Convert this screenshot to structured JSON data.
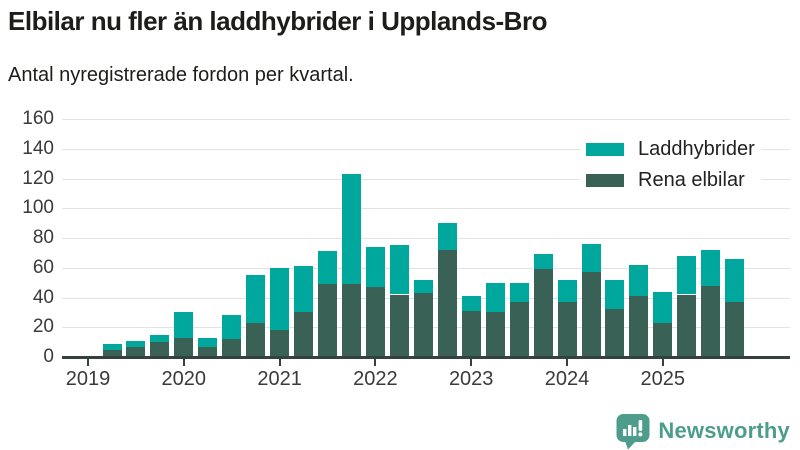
{
  "header": {
    "title": "Elbilar nu fler än laddhybrider i Upplands-Bro",
    "subtitle": "Antal nyregistrerade fordon per kvartal."
  },
  "chart_data": {
    "type": "bar",
    "stacked": true,
    "title": "Elbilar nu fler än laddhybrider i Upplands-Bro",
    "subtitle": "Antal nyregistrerade fordon per kvartal.",
    "unit": "fordon",
    "x_tick_labels": [
      "2019",
      "2020",
      "2021",
      "2022",
      "2023",
      "2024",
      "2025"
    ],
    "quarters": [
      "2019 Q1",
      "2019 Q2",
      "2019 Q3",
      "2019 Q4",
      "2020 Q1",
      "2020 Q2",
      "2020 Q3",
      "2020 Q4",
      "2021 Q1",
      "2021 Q2",
      "2021 Q3",
      "2021 Q4",
      "2022 Q1",
      "2022 Q2",
      "2022 Q3",
      "2022 Q4",
      "2023 Q1",
      "2023 Q2",
      "2023 Q3",
      "2023 Q4",
      "2024 Q1",
      "2024 Q2",
      "2024 Q3",
      "2024 Q4",
      "2025 Q1",
      "2025 Q2",
      "2025 Q3",
      "2025 Q4"
    ],
    "series": [
      {
        "name": "Rena elbilar",
        "stack_position": "bottom",
        "color": "#3a6156",
        "values": [
          0,
          5,
          7,
          10,
          13,
          7,
          12,
          23,
          18,
          30,
          49,
          49,
          47,
          42,
          43,
          72,
          31,
          30,
          37,
          59,
          37,
          57,
          32,
          41,
          23,
          42,
          48,
          37
        ]
      },
      {
        "name": "Laddhybrider",
        "stack_position": "top",
        "color": "#00a79d",
        "values": [
          0,
          4,
          4,
          5,
          17,
          6,
          16,
          32,
          42,
          31,
          22,
          74,
          27,
          33,
          9,
          18,
          10,
          20,
          13,
          10,
          15,
          19,
          20,
          21,
          21,
          26,
          24,
          29
        ]
      }
    ],
    "yticks": [
      0,
      20,
      40,
      60,
      80,
      100,
      120,
      140,
      160
    ],
    "ylim": [
      0,
      160
    ],
    "grid": true,
    "legend_position": "top-right"
  },
  "legend": {
    "items": [
      {
        "label": "Laddhybrider",
        "color": "#00a79d"
      },
      {
        "label": "Rena elbilar",
        "color": "#3a6156"
      }
    ]
  },
  "footer": {
    "brand": "Newsworthy",
    "brand_color": "#4e9d8c",
    "logo_icon": "newsworthy-pin-barchart-icon"
  }
}
